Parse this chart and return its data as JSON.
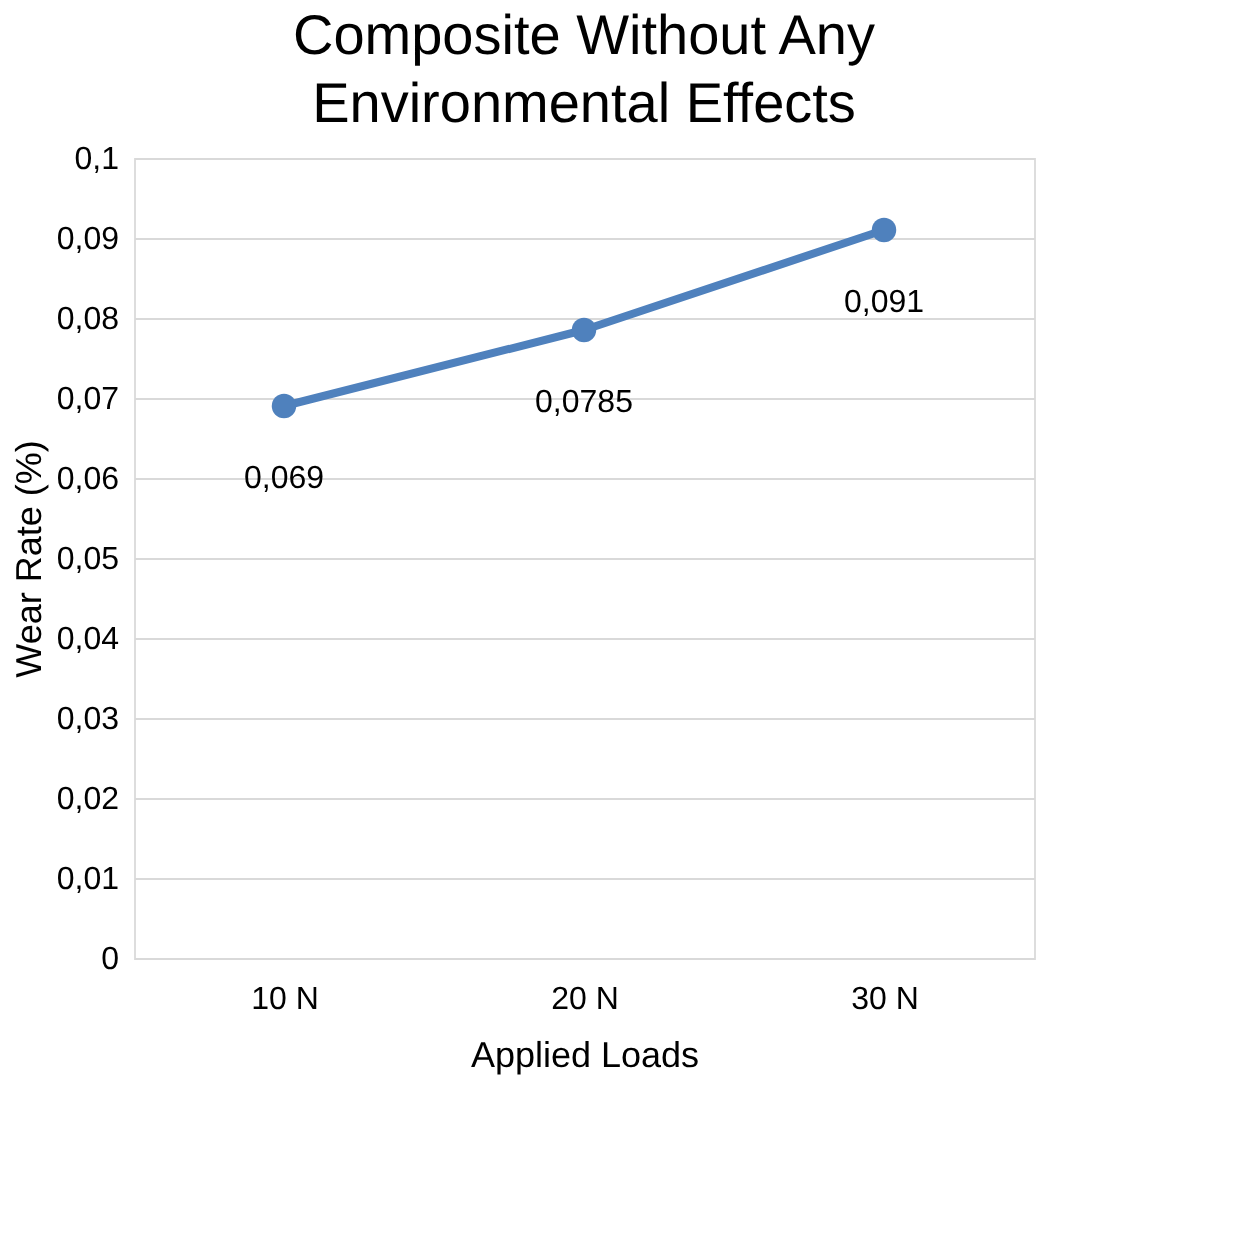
{
  "chart_data": {
    "type": "line",
    "title": "Composite Without Any Environmental Effects",
    "xlabel": "Applied Loads",
    "ylabel": "Wear Rate (%)",
    "categories": [
      "10 N",
      "20 N",
      "30 N"
    ],
    "series": [
      {
        "color": "#4f81bd",
        "values": [
          0.069,
          0.0785,
          0.091
        ],
        "value_labels": [
          "0,069",
          "0,0785",
          "0,091"
        ]
      }
    ],
    "ylim": [
      0,
      0.1
    ],
    "yticks": [
      {
        "value": 0,
        "label": "0"
      },
      {
        "value": 0.01,
        "label": "0,01"
      },
      {
        "value": 0.02,
        "label": "0,02"
      },
      {
        "value": 0.03,
        "label": "0,03"
      },
      {
        "value": 0.04,
        "label": "0,04"
      },
      {
        "value": 0.05,
        "label": "0,05"
      },
      {
        "value": 0.06,
        "label": "0,06"
      },
      {
        "value": 0.07,
        "label": "0,07"
      },
      {
        "value": 0.08,
        "label": "0,08"
      },
      {
        "value": 0.09,
        "label": "0,09"
      },
      {
        "value": 0.1,
        "label": "0,1"
      }
    ],
    "grid": "y",
    "marker": "circle",
    "line_style": "solid"
  }
}
